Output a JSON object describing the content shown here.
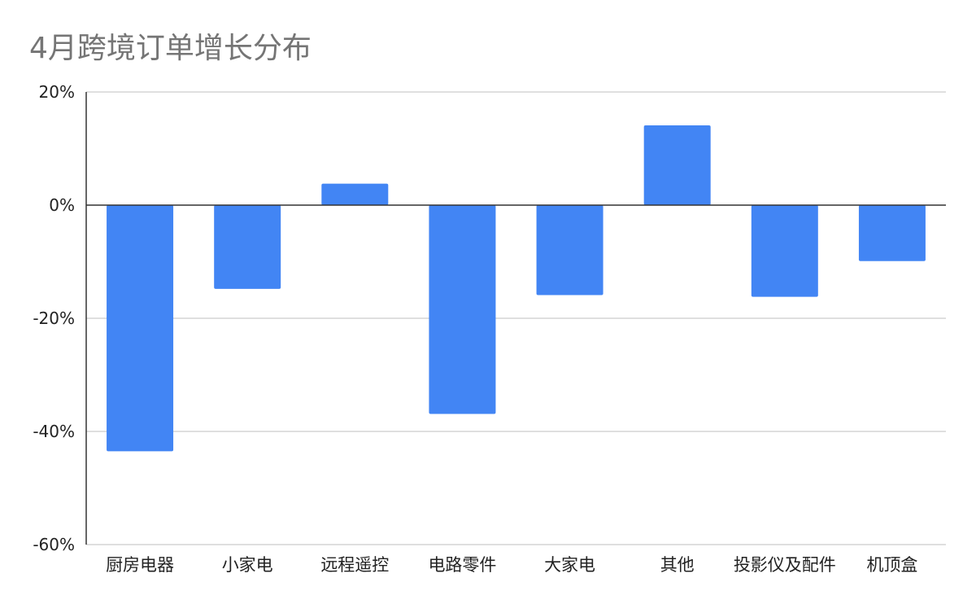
{
  "chart_data": {
    "type": "bar",
    "title": "4月跨境订单增长分布",
    "xlabel": "",
    "ylabel": "",
    "categories": [
      "厨房电器",
      "小家电",
      "远程遥控",
      "电路零件",
      "大家电",
      "其他",
      "投影仪及配件",
      "机顶盒"
    ],
    "series": [
      {
        "values": [
          -43.5,
          -14.8,
          3.8,
          -36.9,
          -15.9,
          14.1,
          -16.2,
          -9.9
        ]
      }
    ],
    "ylim": [
      -60,
      20
    ],
    "yticks": [
      20,
      0,
      -20,
      -40,
      -60
    ],
    "ytick_labels": [
      "20%",
      "0%",
      "-20%",
      "-40%",
      "-60%"
    ],
    "grid": true,
    "legend": "none",
    "colors": {
      "bar": "#4285f4",
      "grid": "#cccccc",
      "zero_line": "#333333",
      "axis": "#333333",
      "title": "#757575",
      "text": "#222222"
    }
  }
}
